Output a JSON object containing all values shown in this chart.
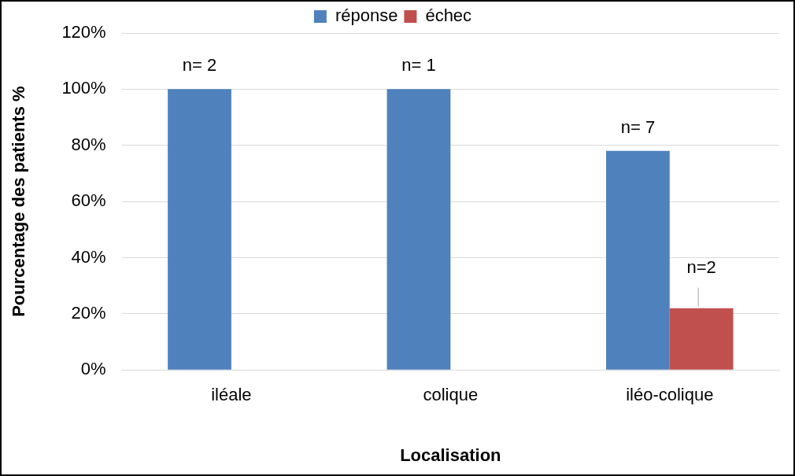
{
  "chart_data": {
    "type": "bar",
    "xlabel": "Localisation",
    "ylabel": "Pourcentage des patients %",
    "categories": [
      "iléale",
      "colique",
      "iléo-colique"
    ],
    "series": [
      {
        "name": "réponse",
        "color": "#4f81bd",
        "values": [
          100,
          100,
          78
        ]
      },
      {
        "name": "échec",
        "color": "#c0504d",
        "values": [
          null,
          null,
          22
        ]
      }
    ],
    "annotations": [
      {
        "text": "n= 2",
        "x": "iléale",
        "y": 100
      },
      {
        "text": "n= 1",
        "x": "colique",
        "y": 100
      },
      {
        "text": "n= 7",
        "x": "iléo-colique",
        "y": 78
      },
      {
        "text": "n=2",
        "x": "iléo-colique",
        "y": 22
      }
    ],
    "ylim": [
      0,
      120
    ],
    "yticks": [
      {
        "value": 0,
        "label": "0%"
      },
      {
        "value": 20,
        "label": "20%"
      },
      {
        "value": 40,
        "label": "40%"
      },
      {
        "value": 60,
        "label": "60%"
      },
      {
        "value": 80,
        "label": "80%"
      },
      {
        "value": 100,
        "label": "100%"
      },
      {
        "value": 120,
        "label": "120%"
      }
    ],
    "grid": "y",
    "legend": "top"
  }
}
